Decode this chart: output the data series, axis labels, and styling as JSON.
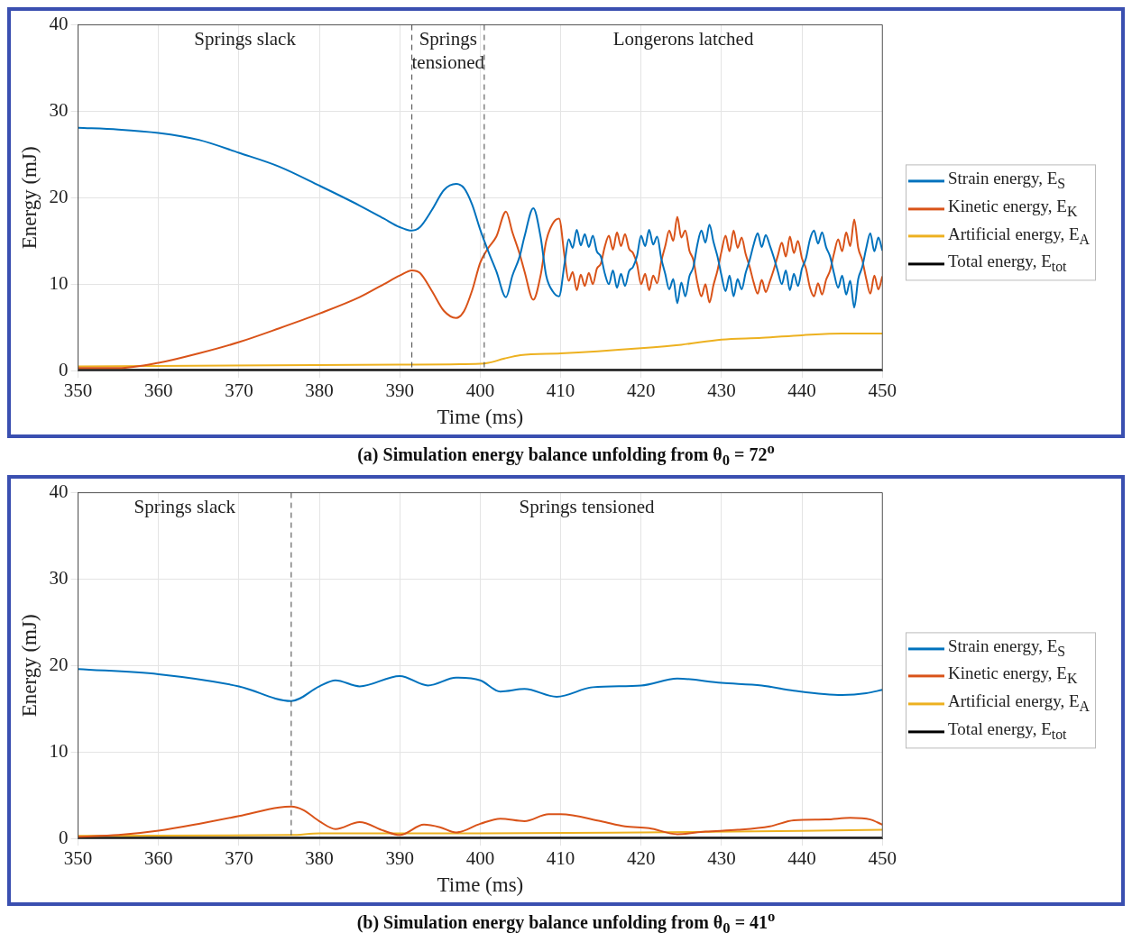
{
  "chart_data": [
    {
      "type": "line",
      "title": "(a) Simulation energy balance unfolding from θ$_{0}$ = 72$^{o}$",
      "xlabel": "Time (ms)",
      "ylabel": "Energy (mJ)",
      "xlim": [
        350,
        450
      ],
      "xticks": [
        350,
        360,
        370,
        380,
        390,
        400,
        410,
        420,
        430,
        440,
        450
      ],
      "ylim": [
        0,
        40
      ],
      "yticks": [
        0,
        10,
        20,
        30,
        40
      ],
      "grid": true,
      "legend": "right",
      "line_style": "solid",
      "annotations": [
        "Springs slack",
        "Springs\ntensioned",
        "Longerons latched"
      ],
      "ref_lines": [
        {
          "axis": "x",
          "value": 391.5,
          "color": "#444444",
          "line_style": "dashed"
        },
        {
          "axis": "x",
          "value": 400.5,
          "color": "#444444",
          "line_style": "dashed"
        }
      ],
      "series": [
        {
          "name": "Strain energy, E$_{S}$",
          "color": "#0072bd",
          "x": [
            350,
            355,
            360,
            365,
            370,
            375,
            380,
            385,
            388,
            390,
            391.5,
            392.5,
            394,
            395.5,
            397,
            398,
            399,
            400,
            401,
            402,
            403.2,
            404,
            404.9,
            405.5,
            406.6,
            407.5,
            408.2,
            409,
            409.8,
            410.5,
            411,
            411.5,
            412,
            412.5,
            413,
            413.5,
            414,
            414.5,
            415,
            415.5,
            416,
            416.5,
            417,
            417.5,
            418,
            418.5,
            419,
            419.5,
            420,
            420.5,
            421,
            421.5,
            422,
            422.5,
            423,
            423.5,
            424,
            424.5,
            425,
            425.5,
            426,
            426.5,
            427,
            427.5,
            428,
            428.5,
            429,
            429.5,
            430,
            430.5,
            431,
            431.5,
            432,
            432.5,
            433,
            433.5,
            434,
            434.5,
            435,
            435.5,
            436,
            436.5,
            437,
            437.5,
            438,
            438.5,
            439,
            439.5,
            440,
            440.5,
            441,
            441.5,
            442,
            442.5,
            443,
            443.5,
            444,
            444.5,
            445,
            445.5,
            446,
            446.5,
            447,
            447.5,
            448,
            448.5,
            449,
            449.5,
            450
          ],
          "values": [
            28.1,
            27.9,
            27.5,
            26.7,
            25.2,
            23.6,
            21.4,
            19.1,
            17.6,
            16.6,
            16.2,
            16.6,
            18.6,
            20.9,
            21.6,
            21.1,
            19.2,
            16.3,
            13.8,
            11.5,
            8.5,
            11.0,
            13.2,
            15.5,
            18.8,
            15.5,
            11.0,
            9.2,
            8.6,
            12.5,
            15.2,
            14.2,
            16.3,
            14.5,
            15.8,
            14.3,
            15.6,
            13.8,
            13.2,
            11.2,
            10.0,
            11.6,
            9.6,
            11.2,
            9.8,
            11.5,
            12.0,
            13.3,
            15.6,
            14.4,
            16.3,
            14.6,
            15.5,
            13.0,
            11.2,
            9.4,
            10.6,
            7.8,
            10.2,
            8.6,
            10.9,
            12.0,
            14.6,
            16.2,
            14.8,
            16.9,
            14.9,
            13.2,
            11.0,
            9.2,
            11.0,
            8.6,
            10.6,
            9.4,
            11.3,
            12.8,
            14.6,
            15.9,
            14.3,
            15.7,
            14.5,
            13.1,
            11.5,
            10.0,
            11.6,
            9.3,
            11.2,
            9.8,
            11.8,
            13.0,
            15.2,
            16.2,
            14.7,
            16.0,
            14.3,
            13.2,
            11.2,
            9.6,
            11.0,
            8.8,
            10.4,
            7.3,
            10.6,
            12.0,
            14.2,
            15.9,
            13.8,
            15.4,
            13.9
          ]
        },
        {
          "name": "Kinetic energy, E$_{K}$",
          "color": "#d95319",
          "x": [
            350,
            355,
            360,
            365,
            370,
            375,
            380,
            385,
            388,
            390,
            391.5,
            392.5,
            394,
            395.5,
            397,
            398,
            399,
            400,
            401,
            402,
            403.2,
            404,
            404.9,
            405.5,
            406.6,
            407.5,
            408.2,
            409,
            409.8,
            410.5,
            411,
            411.5,
            412,
            412.5,
            413,
            413.5,
            414,
            414.5,
            415,
            415.5,
            416,
            416.5,
            417,
            417.5,
            418,
            418.5,
            419,
            419.5,
            420,
            420.5,
            421,
            421.5,
            422,
            422.5,
            423,
            423.5,
            424,
            424.5,
            425,
            425.5,
            426,
            426.5,
            427,
            427.5,
            428,
            428.5,
            429,
            429.5,
            430,
            430.5,
            431,
            431.5,
            432,
            432.5,
            433,
            433.5,
            434,
            434.5,
            435,
            435.5,
            436,
            436.5,
            437,
            437.5,
            438,
            438.5,
            439,
            439.5,
            440,
            440.5,
            441,
            441.5,
            442,
            442.5,
            443,
            443.5,
            444,
            444.5,
            445,
            445.5,
            446,
            446.5,
            447,
            447.5,
            448,
            448.5,
            449,
            449.5,
            450
          ],
          "values": [
            0.3,
            0.3,
            0.9,
            2.0,
            3.3,
            4.9,
            6.6,
            8.5,
            10.0,
            11.0,
            11.6,
            11.3,
            9.2,
            6.9,
            6.1,
            6.9,
            9.3,
            12.5,
            14.2,
            15.5,
            18.4,
            16.0,
            13.5,
            11.5,
            8.2,
            11.0,
            15.0,
            17.0,
            17.6,
            13.1,
            10.4,
            11.4,
            9.3,
            11.1,
            9.8,
            11.3,
            10.0,
            11.8,
            12.4,
            14.4,
            15.6,
            14.0,
            16.0,
            14.4,
            15.8,
            14.1,
            13.6,
            12.3,
            10.0,
            11.2,
            9.3,
            11.0,
            10.1,
            12.6,
            14.4,
            16.2,
            15.0,
            17.8,
            15.4,
            16.2,
            13.9,
            12.8,
            10.2,
            8.6,
            10.0,
            7.9,
            9.9,
            11.6,
            13.8,
            15.6,
            13.8,
            16.2,
            14.2,
            15.4,
            13.5,
            12.0,
            10.2,
            8.9,
            10.5,
            9.1,
            10.3,
            11.7,
            13.3,
            14.8,
            13.2,
            15.5,
            13.6,
            15.0,
            13.0,
            11.8,
            9.6,
            8.6,
            10.1,
            8.8,
            10.5,
            11.6,
            13.6,
            15.2,
            13.8,
            16.0,
            14.4,
            17.5,
            14.2,
            12.8,
            10.6,
            8.9,
            11.0,
            9.4,
            10.9
          ]
        },
        {
          "name": "Artificial energy, E$_{A}$",
          "color": "#edb120",
          "x": [
            350,
            390,
            400,
            401,
            403,
            405,
            410,
            420,
            425,
            430,
            435,
            440,
            445,
            450
          ],
          "values": [
            0.5,
            0.7,
            0.8,
            0.9,
            1.4,
            1.8,
            2.0,
            2.6,
            3.0,
            3.6,
            3.8,
            4.1,
            4.3,
            4.3
          ]
        },
        {
          "name": "Total energy, E$_{tot}$",
          "color": "#000000",
          "x": [
            350,
            400,
            450
          ],
          "values": [
            0.1,
            0.1,
            0.1
          ]
        }
      ]
    },
    {
      "type": "line",
      "title": "(b) Simulation energy balance unfolding from θ$_{0}$ = 41$^{o}$",
      "xlabel": "Time (ms)",
      "ylabel": "Energy (mJ)",
      "xlim": [
        350,
        450
      ],
      "xticks": [
        350,
        360,
        370,
        380,
        390,
        400,
        410,
        420,
        430,
        440,
        450
      ],
      "ylim": [
        0,
        40
      ],
      "yticks": [
        0,
        10,
        20,
        30,
        40
      ],
      "grid": true,
      "legend": "right",
      "line_style": "solid",
      "annotations": [
        "Springs slack",
        "Springs tensioned"
      ],
      "ref_lines": [
        {
          "axis": "x",
          "value": 376.5,
          "color": "#444444",
          "line_style": "dashed"
        }
      ],
      "series": [
        {
          "name": "Strain energy, E$_{S}$",
          "color": "#0072bd",
          "x": [
            350,
            360,
            370,
            376.5,
            380,
            382,
            385,
            390,
            393.5,
            397,
            400,
            402.5,
            405.5,
            409.5,
            414,
            420,
            424.5,
            430,
            435,
            439,
            445,
            448,
            450
          ],
          "values": [
            19.6,
            19.0,
            17.6,
            15.9,
            17.6,
            18.3,
            17.6,
            18.8,
            17.7,
            18.6,
            18.3,
            17.0,
            17.3,
            16.4,
            17.5,
            17.7,
            18.5,
            18.0,
            17.7,
            17.1,
            16.6,
            16.8,
            17.2
          ]
        },
        {
          "name": "Kinetic energy, E$_{K}$",
          "color": "#d95319",
          "x": [
            350,
            355,
            360,
            365,
            370,
            375,
            376.5,
            378,
            380,
            382,
            385,
            388,
            390,
            393,
            395,
            397,
            400,
            402.5,
            405.5,
            408.5,
            410,
            415,
            418,
            421,
            424.5,
            428,
            432,
            436,
            439,
            443,
            446,
            448.5,
            450
          ],
          "values": [
            0.2,
            0.4,
            0.9,
            1.7,
            2.6,
            3.6,
            3.7,
            3.3,
            2.0,
            1.1,
            1.9,
            0.9,
            0.4,
            1.6,
            1.3,
            0.7,
            1.7,
            2.3,
            2.0,
            2.8,
            2.8,
            2.0,
            1.4,
            1.2,
            0.5,
            0.8,
            1.0,
            1.4,
            2.1,
            2.2,
            2.4,
            2.2,
            1.6
          ]
        },
        {
          "name": "Artificial energy, E$_{A}$",
          "color": "#edb120",
          "x": [
            350,
            376.5,
            380,
            400,
            420,
            450
          ],
          "values": [
            0.3,
            0.4,
            0.6,
            0.6,
            0.7,
            1.0
          ]
        },
        {
          "name": "Total energy, E$_{tot}$",
          "color": "#000000",
          "x": [
            350,
            400,
            450
          ],
          "values": [
            0.1,
            0.1,
            0.1
          ]
        }
      ]
    }
  ]
}
